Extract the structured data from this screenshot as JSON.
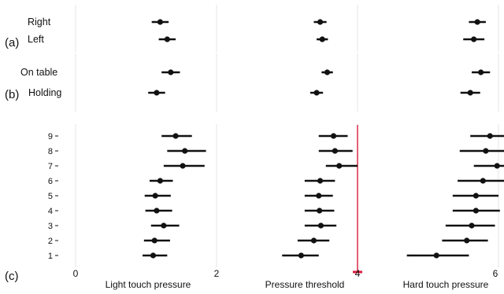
{
  "chart_data": {
    "type": "scatter",
    "style": {
      "point_color": "#111111",
      "grid_color": "#e6e6e6",
      "threshold_color": "#d81b3c",
      "grid": true
    },
    "x_axis": {
      "range": [
        -0.7,
        6.1
      ],
      "ticks": [
        0,
        2,
        4,
        6
      ],
      "tick_labels": [
        "0",
        "2",
        "4",
        "6"
      ]
    },
    "panel_titles": [
      "Light touch pressure",
      "Pressure threshold",
      "Hard touch pressure"
    ],
    "group_labels": [
      "(a)",
      "(b)",
      "(c)"
    ],
    "groups": [
      {
        "label": "(a)",
        "rows": [
          {
            "label": "Right",
            "points": [
              {
                "x": 1.2,
                "lo": 1.08,
                "hi": 1.32
              },
              {
                "x": 3.47,
                "lo": 3.38,
                "hi": 3.56
              },
              {
                "x": 5.7,
                "lo": 5.58,
                "hi": 5.82
              }
            ]
          },
          {
            "label": "Left",
            "points": [
              {
                "x": 1.3,
                "lo": 1.18,
                "hi": 1.42
              },
              {
                "x": 3.5,
                "lo": 3.42,
                "hi": 3.58
              },
              {
                "x": 5.65,
                "lo": 5.5,
                "hi": 5.8
              }
            ]
          }
        ]
      },
      {
        "label": "(b)",
        "rows": [
          {
            "label": "On table",
            "points": [
              {
                "x": 1.35,
                "lo": 1.22,
                "hi": 1.48
              },
              {
                "x": 3.57,
                "lo": 3.49,
                "hi": 3.65
              },
              {
                "x": 5.75,
                "lo": 5.62,
                "hi": 5.88
              }
            ]
          },
          {
            "label": "Holding",
            "points": [
              {
                "x": 1.15,
                "lo": 1.03,
                "hi": 1.27
              },
              {
                "x": 3.42,
                "lo": 3.33,
                "hi": 3.51
              },
              {
                "x": 5.6,
                "lo": 5.46,
                "hi": 5.74
              }
            ]
          }
        ]
      },
      {
        "label": "(c)",
        "rows": [
          {
            "label": "9",
            "points": [
              {
                "x": 1.42,
                "lo": 1.22,
                "hi": 1.65
              },
              {
                "x": 3.66,
                "lo": 3.45,
                "hi": 3.86
              },
              {
                "x": 5.88,
                "lo": 5.6,
                "hi": 6.12
              }
            ]
          },
          {
            "label": "8",
            "points": [
              {
                "x": 1.55,
                "lo": 1.3,
                "hi": 1.85
              },
              {
                "x": 3.68,
                "lo": 3.45,
                "hi": 3.93
              },
              {
                "x": 5.82,
                "lo": 5.45,
                "hi": 6.1
              }
            ]
          },
          {
            "label": "7",
            "points": [
              {
                "x": 1.52,
                "lo": 1.25,
                "hi": 1.83
              },
              {
                "x": 3.74,
                "lo": 3.55,
                "hi": 4.0
              },
              {
                "x": 5.98,
                "lo": 5.65,
                "hi": 6.2
              }
            ]
          },
          {
            "label": "6",
            "points": [
              {
                "x": 1.2,
                "lo": 1.05,
                "hi": 1.38
              },
              {
                "x": 3.47,
                "lo": 3.25,
                "hi": 3.68
              },
              {
                "x": 5.78,
                "lo": 5.42,
                "hi": 6.08
              }
            ]
          },
          {
            "label": "5",
            "points": [
              {
                "x": 1.13,
                "lo": 0.98,
                "hi": 1.35
              },
              {
                "x": 3.45,
                "lo": 3.25,
                "hi": 3.65
              },
              {
                "x": 5.68,
                "lo": 5.35,
                "hi": 6.0
              }
            ]
          },
          {
            "label": "4",
            "points": [
              {
                "x": 1.15,
                "lo": 0.99,
                "hi": 1.37
              },
              {
                "x": 3.46,
                "lo": 3.25,
                "hi": 3.67
              },
              {
                "x": 5.68,
                "lo": 5.35,
                "hi": 6.02
              }
            ]
          },
          {
            "label": "3",
            "points": [
              {
                "x": 1.25,
                "lo": 1.07,
                "hi": 1.47
              },
              {
                "x": 3.48,
                "lo": 3.25,
                "hi": 3.7
              },
              {
                "x": 5.62,
                "lo": 5.25,
                "hi": 5.95
              }
            ]
          },
          {
            "label": "2",
            "points": [
              {
                "x": 1.12,
                "lo": 0.97,
                "hi": 1.34
              },
              {
                "x": 3.38,
                "lo": 3.15,
                "hi": 3.6
              },
              {
                "x": 5.55,
                "lo": 5.2,
                "hi": 5.85
              }
            ]
          },
          {
            "label": "1",
            "points": [
              {
                "x": 1.1,
                "lo": 0.95,
                "hi": 1.3
              },
              {
                "x": 3.2,
                "lo": 2.93,
                "hi": 3.45
              },
              {
                "x": 5.12,
                "lo": 4.7,
                "hi": 5.58
              }
            ]
          }
        ]
      }
    ],
    "reference_line": {
      "x": 4.0,
      "label": ""
    }
  }
}
